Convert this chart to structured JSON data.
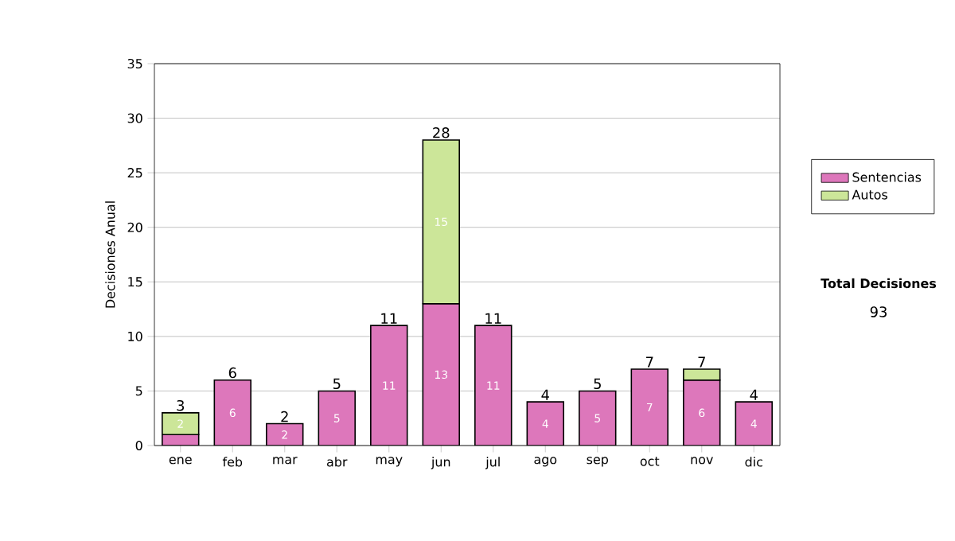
{
  "chart_data": {
    "type": "bar",
    "stacked": true,
    "ylabel": "Decisiones Anual",
    "categories": [
      "ene",
      "feb",
      "mar",
      "abr",
      "may",
      "jun",
      "jul",
      "ago",
      "sep",
      "oct",
      "nov",
      "dic"
    ],
    "series": [
      {
        "name": "Sentencias",
        "color": "#dd77bb",
        "values": [
          1,
          6,
          2,
          5,
          11,
          13,
          11,
          4,
          5,
          7,
          6,
          4
        ],
        "value_labels": [
          null,
          "6",
          "2",
          "5",
          "11",
          "13",
          "11",
          "4",
          "5",
          "7",
          "6",
          "4"
        ]
      },
      {
        "name": "Autos",
        "color": "#cce699",
        "values": [
          2,
          null,
          null,
          null,
          null,
          15,
          null,
          null,
          null,
          null,
          1,
          null
        ],
        "value_labels": [
          "2",
          null,
          null,
          null,
          null,
          "15",
          null,
          null,
          null,
          null,
          null,
          null
        ]
      }
    ],
    "totals": [
      "3",
      "6",
      "2",
      "5",
      "11",
      "28",
      "11",
      "4",
      "5",
      "7",
      "7",
      "4"
    ],
    "ylim": [
      0,
      35
    ],
    "yticks": [
      0,
      5,
      10,
      15,
      20,
      25,
      30,
      35
    ],
    "grid": "y",
    "legend": "right",
    "annotations": [
      "Total Decisiones",
      "93"
    ]
  }
}
